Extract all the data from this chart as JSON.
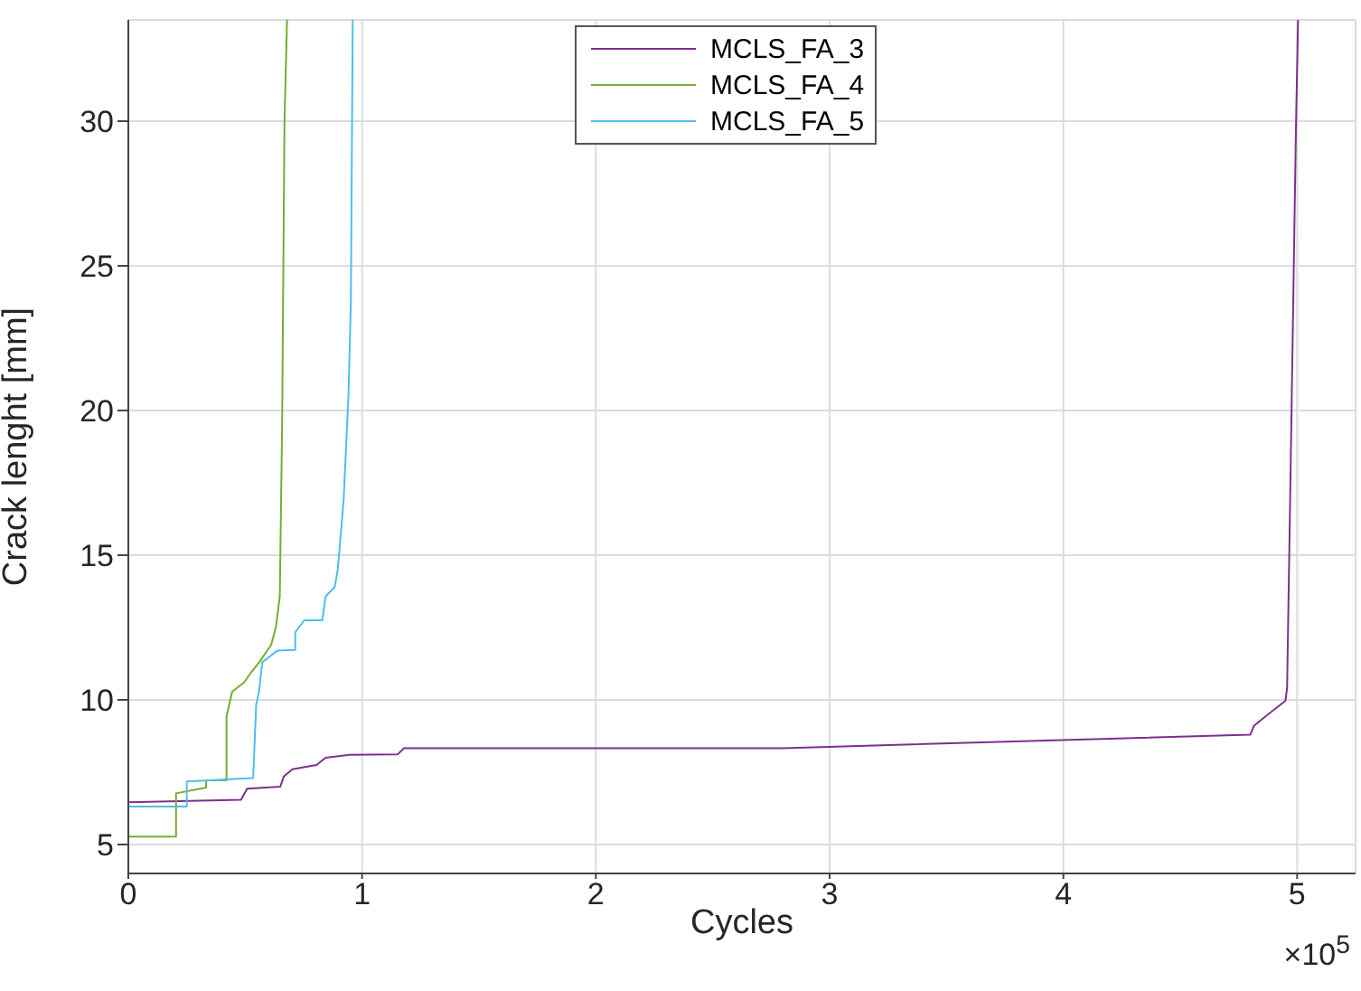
{
  "chart_data": {
    "type": "line",
    "xlabel": "Cycles",
    "ylabel": "Crack lenght [mm]",
    "annotations": [
      "×10$^{5}$"
    ],
    "xlim": [
      0,
      5.25
    ],
    "ylim": [
      4,
      33.5
    ],
    "xticks": [
      0,
      1,
      2,
      3,
      4,
      5
    ],
    "yticks": [
      5,
      10,
      15,
      20,
      25,
      30
    ],
    "grid": true,
    "legend": "top",
    "marker": "none",
    "line_style": "solid",
    "series": [
      {
        "name": "MCLS_FA_3",
        "color": "#7e2f8e",
        "x": [
          0,
          0,
          0.482,
          0.508,
          0.65,
          0.665,
          0.702,
          0.805,
          0.844,
          0.947,
          1.153,
          1.179,
          2.8,
          4.8,
          4.815,
          4.86,
          4.95,
          4.957,
          4.974,
          4.995,
          5.004
        ],
        "values": [
          4.07,
          6.46,
          6.55,
          6.93,
          7.0,
          7.35,
          7.6,
          7.75,
          8.0,
          8.1,
          8.12,
          8.33,
          8.33,
          8.8,
          9.1,
          9.4,
          9.97,
          10.4,
          18.9,
          29.8,
          33.5
        ]
      },
      {
        "name": "MCLS_FA_4",
        "color": "#77ac30",
        "x": [
          0,
          0.204,
          0.204,
          0.333,
          0.333,
          0.42,
          0.42,
          0.444,
          0.495,
          0.521,
          0.56,
          0.611,
          0.632,
          0.648,
          0.658,
          0.668,
          0.679
        ],
        "values": [
          5.27,
          5.27,
          6.77,
          6.97,
          7.22,
          7.22,
          9.42,
          10.28,
          10.6,
          10.9,
          11.3,
          11.9,
          12.54,
          13.58,
          19.6,
          30,
          33.5
        ]
      },
      {
        "name": "MCLS_FA_5",
        "color": "#4dbeee",
        "x": [
          0,
          0.25,
          0.25,
          0.534,
          0.547,
          0.559,
          0.573,
          0.637,
          0.714,
          0.714,
          0.753,
          0.83,
          0.844,
          0.883,
          0.896,
          0.921,
          0.942,
          0.952,
          0.96
        ],
        "values": [
          6.31,
          6.31,
          7.18,
          7.3,
          9.84,
          10.27,
          11.3,
          11.7,
          11.73,
          12.33,
          12.75,
          12.75,
          13.58,
          13.9,
          14.5,
          16.9,
          20.6,
          23.75,
          33.5
        ]
      }
    ]
  }
}
